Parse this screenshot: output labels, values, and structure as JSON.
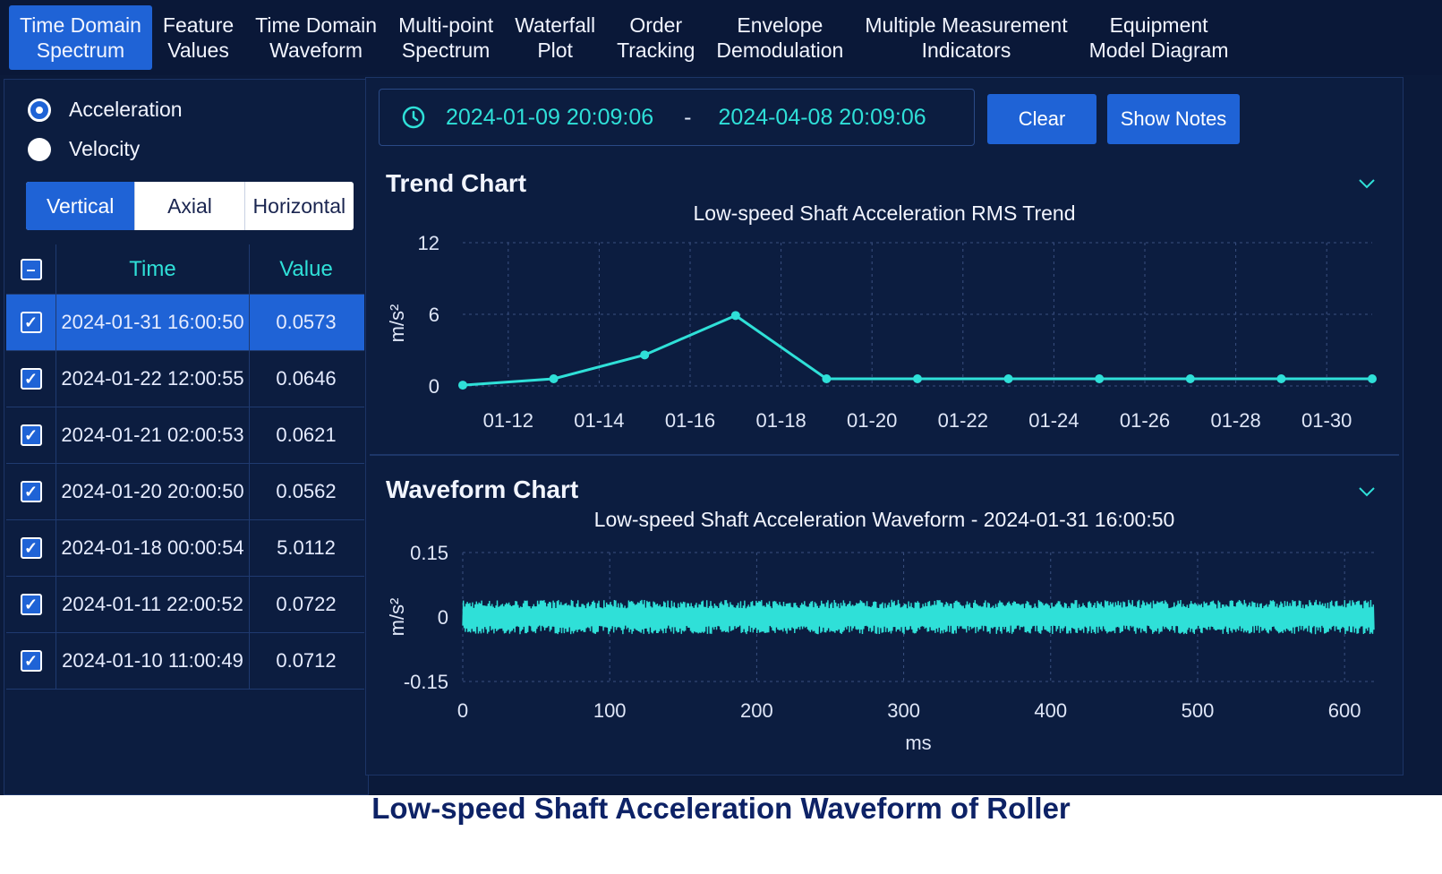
{
  "tabs": [
    {
      "label": "Time Domain\nSpectrum",
      "active": true
    },
    {
      "label": "Feature\nValues"
    },
    {
      "label": "Time Domain\nWaveform"
    },
    {
      "label": "Multi-point\nSpectrum"
    },
    {
      "label": "Waterfall\nPlot"
    },
    {
      "label": "Order\nTracking"
    },
    {
      "label": "Envelope\nDemodulation"
    },
    {
      "label": "Multiple Measurement\nIndicators"
    },
    {
      "label": "Equipment\nModel Diagram"
    }
  ],
  "measure": {
    "acceleration": "Acceleration",
    "velocity": "Velocity",
    "selected": "Acceleration"
  },
  "direction": {
    "vertical": "Vertical",
    "axial": "Axial",
    "horizontal": "Horizontal",
    "selected": "Vertical"
  },
  "table": {
    "time_header": "Time",
    "value_header": "Value",
    "rows": [
      {
        "time": "2024-01-31 16:00:50",
        "value": "0.0573",
        "selected": true
      },
      {
        "time": "2024-01-22 12:00:55",
        "value": "0.0646"
      },
      {
        "time": "2024-01-21 02:00:53",
        "value": "0.0621"
      },
      {
        "time": "2024-01-20 20:00:50",
        "value": "0.0562"
      },
      {
        "time": "2024-01-18 00:00:54",
        "value": "5.0112"
      },
      {
        "time": "2024-01-11 22:00:52",
        "value": "0.0722"
      },
      {
        "time": "2024-01-10 11:00:49",
        "value": "0.0712"
      }
    ]
  },
  "date_range": {
    "start": "2024-01-09 20:09:06",
    "separator": "-",
    "end": "2024-04-08 20:09:06"
  },
  "buttons": {
    "clear": "Clear",
    "show_notes": "Show Notes"
  },
  "trend": {
    "section_title": "Trend Chart"
  },
  "waveform": {
    "section_title": "Waveform Chart"
  },
  "chart_data": [
    {
      "type": "line",
      "title": "Low-speed Shaft Acceleration RMS Trend",
      "ylabel": "m/s²",
      "xlabel": "",
      "ylim": [
        0,
        12
      ],
      "yticks": [
        "12",
        "6",
        "0"
      ],
      "xticks": [
        "01-12",
        "01-14",
        "01-16",
        "01-18",
        "01-20",
        "01-22",
        "01-24",
        "01-26",
        "01-28",
        "01-30"
      ],
      "xrange": [
        "2024-01-11",
        "2024-01-31"
      ],
      "grid": true,
      "series": [
        {
          "color": "#2fe0d8",
          "x": [
            "2024-01-11",
            "2024-01-13",
            "2024-01-15",
            "2024-01-17",
            "2024-01-19",
            "2024-01-21",
            "2024-01-23",
            "2024-01-25",
            "2024-01-27",
            "2024-01-29",
            "2024-01-31"
          ],
          "y": [
            0.07,
            0.6,
            2.6,
            5.9,
            0.6,
            0.6,
            0.6,
            0.6,
            0.6,
            0.6,
            0.6
          ]
        }
      ]
    },
    {
      "type": "line",
      "title": "Low-speed Shaft Acceleration Waveform - 2024-01-31 16:00:50",
      "ylabel": "m/s²",
      "xlabel": "ms",
      "ylim": [
        -0.15,
        0.15
      ],
      "yticks": [
        "0.15",
        "0",
        "-0.15"
      ],
      "xlim": [
        0,
        620
      ],
      "xticks": [
        "0",
        "100",
        "200",
        "300",
        "400",
        "500",
        "600"
      ],
      "grid": true,
      "series": [
        {
          "color": "#2fe0d8",
          "amplitude": 0.04,
          "x_range": [
            0,
            620
          ]
        }
      ]
    }
  ],
  "caption": "Low-speed Shaft Acceleration Waveform of Roller"
}
